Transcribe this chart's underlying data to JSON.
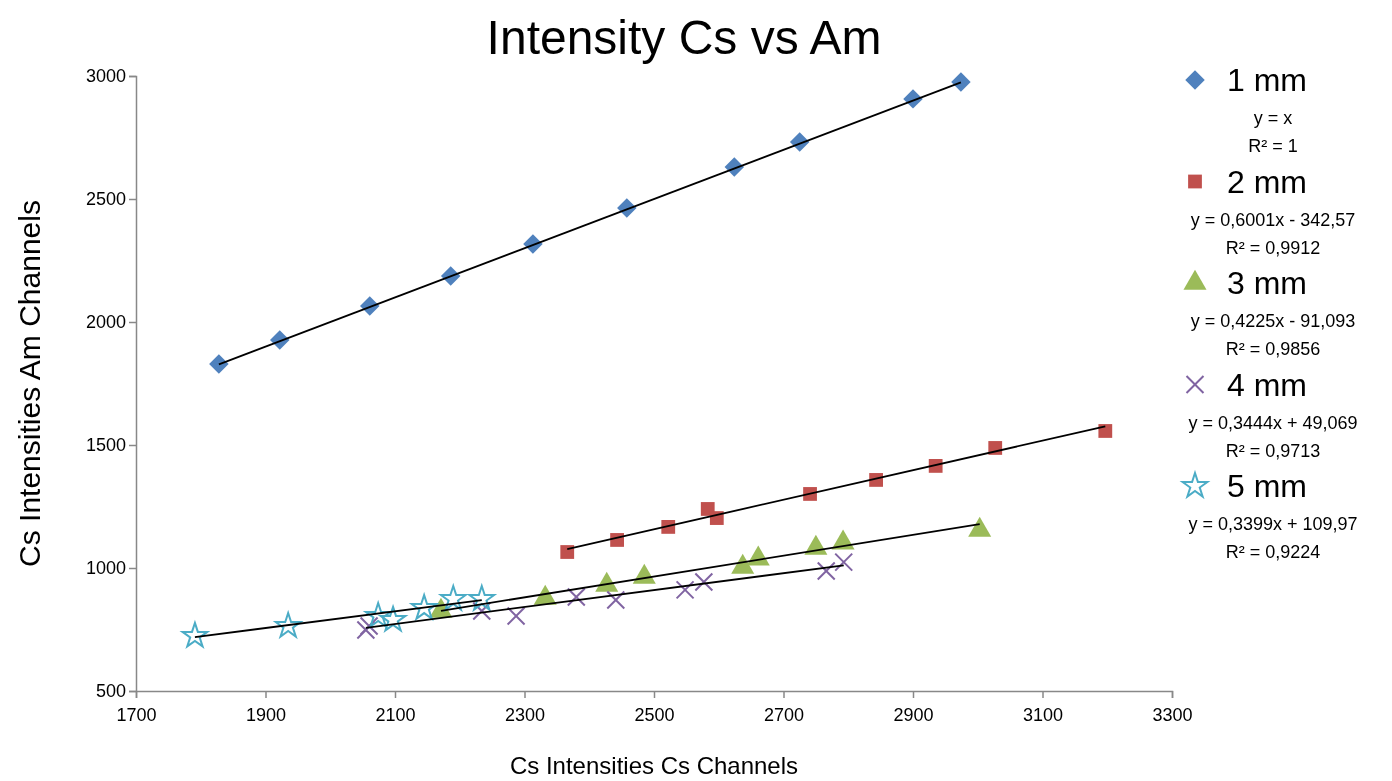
{
  "chart_data": {
    "type": "scatter",
    "title": "Intensity Cs vs Am",
    "xlabel": "Cs Intensities Cs Channels",
    "ylabel": "Cs Intensities Am Channels",
    "xlim": [
      1700,
      3300
    ],
    "xticks": [
      1700,
      1900,
      2100,
      2300,
      2500,
      2700,
      2900,
      3100,
      3300
    ],
    "ylim": [
      500,
      3000
    ],
    "yticks": [
      500,
      1000,
      1500,
      2000,
      2500,
      3000
    ],
    "grid": false,
    "legend": "right",
    "series": [
      {
        "name": "1 mm",
        "color": "#4f81bd",
        "marker": "diamond",
        "x": [
          1828,
          1922,
          2061,
          2186,
          2313,
          2458,
          2624,
          2725,
          2900,
          2974
        ],
        "values": [
          1829,
          1927,
          2065,
          2187,
          2317,
          2463,
          2630,
          2732,
          2907,
          2976
        ]
      },
      {
        "name": "2 mm",
        "color": "#c0504d",
        "marker": "square",
        "x": [
          2366,
          2443,
          2522,
          2583,
          2597,
          2741,
          2843,
          2935,
          3027,
          3197
        ],
        "values": [
          1065,
          1114,
          1167,
          1240,
          1203,
          1301,
          1358,
          1415,
          1488,
          1557
        ]
      },
      {
        "name": "3 mm",
        "color": "#9bbb59",
        "marker": "triangle",
        "x": [
          2171,
          2332,
          2427,
          2485,
          2637,
          2661,
          2750,
          2792,
          3003
        ],
        "values": [
          825,
          878,
          931,
          963,
          1004,
          1037,
          1081,
          1102,
          1154
        ]
      },
      {
        "name": "4 mm",
        "color": "#8064a2",
        "marker": "cross",
        "x": [
          2055,
          2060,
          2234,
          2287,
          2380,
          2441,
          2548,
          2577,
          2766,
          2793
        ],
        "values": [
          748,
          764,
          825,
          805,
          882,
          870,
          911,
          943,
          988,
          1024
        ]
      },
      {
        "name": "5 mm",
        "color": "#4bacc6",
        "marker": "star",
        "x": [
          1791,
          1935,
          2074,
          2097,
          2145,
          2190,
          2234
        ],
        "values": [
          724,
          764,
          805,
          789,
          837,
          874,
          874
        ]
      },
      {
        "type": "line",
        "color": "#000000",
        "marker": "none",
        "x": [
          1828,
          2974
        ],
        "values": [
          1828,
          2974
        ]
      },
      {
        "type": "line",
        "color": "#000000",
        "marker": "none",
        "x": [
          2366,
          3197
        ],
        "values": [
          1077,
          1576
        ]
      },
      {
        "type": "line",
        "color": "#000000",
        "marker": "none",
        "x": [
          2171,
          3003
        ],
        "values": [
          826,
          1178
        ]
      },
      {
        "type": "line",
        "color": "#000000",
        "marker": "none",
        "x": [
          2055,
          2793
        ],
        "values": [
          757,
          1011
        ]
      },
      {
        "type": "line",
        "color": "#000000",
        "marker": "none",
        "x": [
          1791,
          2234
        ],
        "values": [
          719,
          869
        ]
      }
    ],
    "annotations": [
      "y = x",
      "R² = 1",
      "y = 0,6001x - 342,57",
      "R² = 0,9912",
      "y = 0,4225x - 91,093",
      "R² = 0,9856",
      "y = 0,3444x + 49,069",
      "R² = 0,9713",
      "y = 0,3399x + 109,97",
      "R² = 0,9224"
    ]
  }
}
